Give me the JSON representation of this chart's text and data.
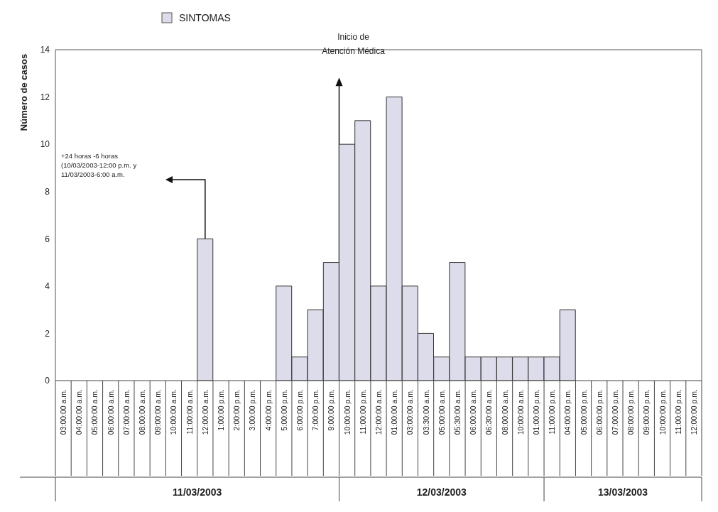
{
  "chart_data": {
    "type": "bar",
    "ylabel": "Número de casos",
    "legend": "top",
    "categories": [
      "03:00:00 a.m.",
      "04:00:00 a.m.",
      "05:00:00 a.m.",
      "06:00:00 a.m.",
      "07:00:00 a.m.",
      "08:00:00 a.m.",
      "09:00:00 a.m.",
      "10:00:00 a.m.",
      "11:00:00 a.m.",
      "12:00:00 a.m.",
      "1:00:00 p.m.",
      "2:00:00 p.m.",
      "3:00:00 p.m.",
      "4:00:00 p.m.",
      "5:00:00 p.m.",
      "6:00:00 p.m.",
      "7:00:00 p.m.",
      "9:00:00 p.m.",
      "10:00:00 p.m.",
      "11:00:00 p.m.",
      "12:00:00 a.m.",
      "01:00:00 a.m.",
      "03:00:00 a.m.",
      "03:30:00 a.m.",
      "05:00:00 a.m.",
      "05:30:00 a.m.",
      "06:00:00 a.m.",
      "06:30:00 a.m.",
      "08:00:00 a.m.",
      "10:00:00 a.m.",
      "01:00:00 p.m.",
      "11:00:00 p.m.",
      "04:00:00 p.m.",
      "05:00:00 p.m.",
      "06:00:00 p.m.",
      "07:00:00 p.m.",
      "08:00:00 p.m.",
      "09:00:00 p.m.",
      "10:00:00 p.m.",
      "11:00:00 p.m.",
      "12:00:00 p.m."
    ],
    "series": [
      {
        "name": "SINTOMAS",
        "color": "#dcdcea",
        "values": [
          0,
          0,
          0,
          0,
          0,
          0,
          0,
          0,
          0,
          6,
          0,
          0,
          0,
          0,
          4,
          1,
          3,
          5,
          10,
          11,
          4,
          12,
          4,
          2,
          1,
          5,
          1,
          1,
          1,
          1,
          1,
          1,
          3,
          0,
          0,
          0,
          0,
          0,
          0,
          0,
          0
        ]
      }
    ],
    "ylim": [
      0,
      14
    ],
    "yticks": [
      0,
      2,
      4,
      6,
      8,
      10,
      12,
      14
    ],
    "annotations": [
      "+24 horas -6 horas\n(10/03/2003-12:00 p.m. y\n11/03/2003-6:00 a.m.",
      "Inicio de\nAtención Médica",
      "11/03/2003",
      "12/03/2003",
      "13/03/2003"
    ]
  }
}
